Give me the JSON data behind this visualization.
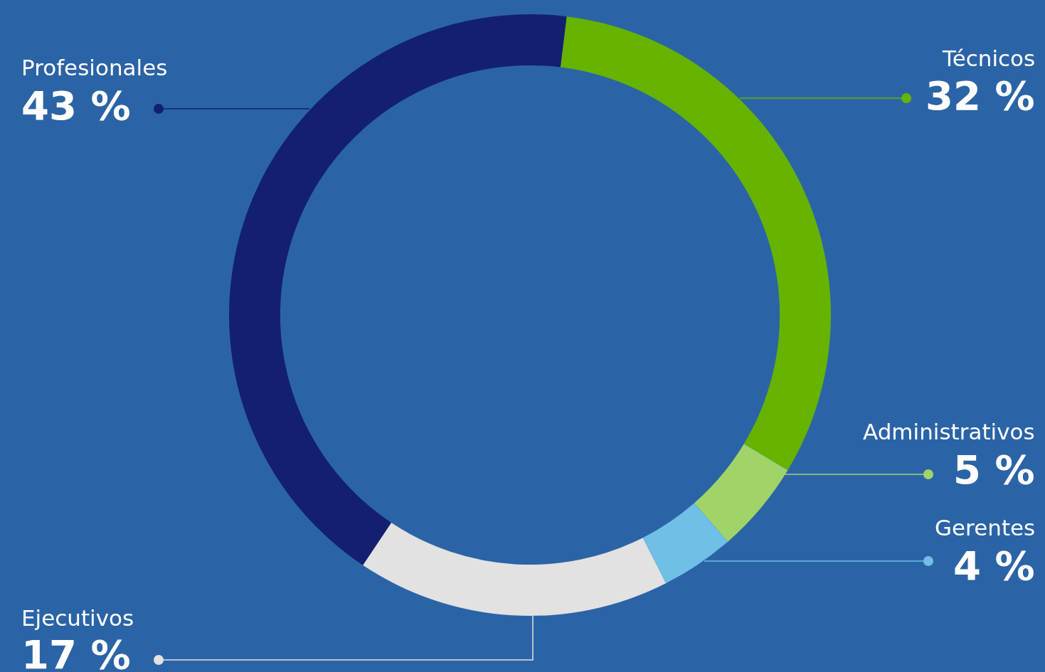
{
  "chart_data": {
    "type": "donut",
    "categories": [
      "Técnicos",
      "Administrativos",
      "Gerentes",
      "Ejecutivos",
      "Profesionales"
    ],
    "values": [
      32,
      5,
      4,
      17,
      43
    ],
    "value_labels": [
      "32 %",
      "5 %",
      "4 %",
      "17 %",
      "43 %"
    ],
    "colors": [
      "#66b300",
      "#a0d468",
      "#6fbfe6",
      "#e2e2e2",
      "#13206f"
    ]
  }
}
